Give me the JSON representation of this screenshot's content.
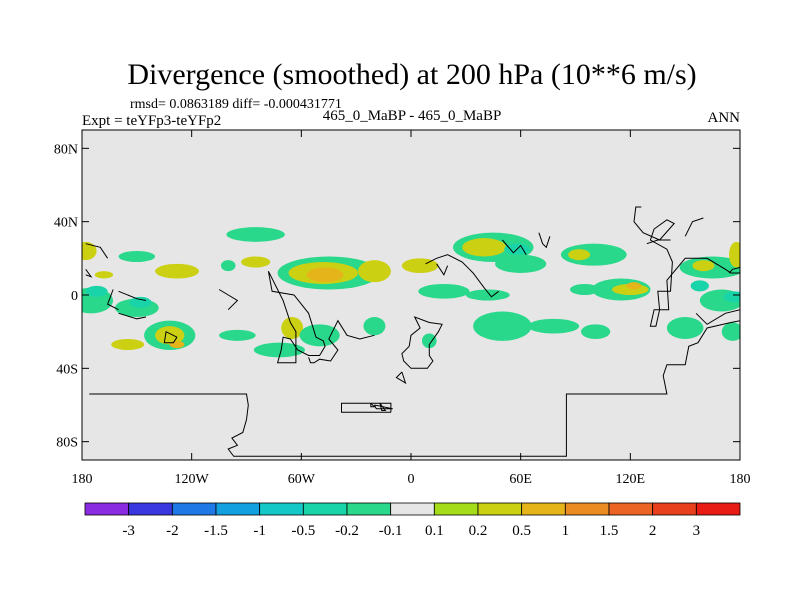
{
  "chart_data": {
    "type": "heatmap",
    "title": "Divergence (smoothed) at 200 hPa (10**6 m/s)",
    "stats_line": "rmsd= 0.0863189 diff= -0.000431771",
    "left_label": "Expt = teYFp3-teYFp2",
    "center_label": "465_0_MaBP - 465_0_MaBP",
    "right_label": "ANN",
    "x_range": [
      -180,
      180
    ],
    "y_range": [
      -90,
      90
    ],
    "x_ticks": [
      {
        "value": -180,
        "label": "180"
      },
      {
        "value": -120,
        "label": "120W"
      },
      {
        "value": -60,
        "label": "60W"
      },
      {
        "value": 0,
        "label": "0"
      },
      {
        "value": 60,
        "label": "60E"
      },
      {
        "value": 120,
        "label": "120E"
      },
      {
        "value": 180,
        "label": "180"
      }
    ],
    "y_ticks": [
      {
        "value": 80,
        "label": "80N"
      },
      {
        "value": 40,
        "label": "40N"
      },
      {
        "value": 0,
        "label": "0"
      },
      {
        "value": -40,
        "label": "40S"
      },
      {
        "value": -80,
        "label": "80S"
      }
    ],
    "background_color": "#e6e6e6",
    "colorbar": {
      "labels": [
        "-3",
        "-2",
        "-1.5",
        "-1",
        "-0.5",
        "-0.2",
        "-0.1",
        "0.1",
        "0.2",
        "0.5",
        "1",
        "1.5",
        "2",
        "3"
      ],
      "colors": [
        "#8a2be2",
        "#3a36e0",
        "#1e78e6",
        "#12a0e0",
        "#14c8c8",
        "#18d4a8",
        "#2ad88c",
        "#e6e6e6",
        "#a4dc1a",
        "#ccd012",
        "#e4b41a",
        "#eb8c22",
        "#eb6423",
        "#e8401c",
        "#e81c14"
      ]
    },
    "anomaly_regions": [
      {
        "lon": -178,
        "lat": 24,
        "rlon": 6,
        "rlat": 5,
        "level": "0.2"
      },
      {
        "lon": -150,
        "lat": 21,
        "rlon": 10,
        "rlat": 3,
        "level": "-0.1"
      },
      {
        "lon": -168,
        "lat": 11,
        "rlon": 5,
        "rlat": 2,
        "level": "0.2"
      },
      {
        "lon": -128,
        "lat": 13,
        "rlon": 12,
        "rlat": 4,
        "level": "0.2"
      },
      {
        "lon": -85,
        "lat": 33,
        "rlon": 16,
        "rlat": 4,
        "level": "-0.1"
      },
      {
        "lon": -85,
        "lat": 18,
        "rlon": 8,
        "rlat": 3,
        "level": "0.2"
      },
      {
        "lon": -45,
        "lat": 12,
        "rlon": 28,
        "rlat": 9,
        "level": "-0.1"
      },
      {
        "lon": -48,
        "lat": 12,
        "rlon": 19,
        "rlat": 6,
        "level": "0.2"
      },
      {
        "lon": -47,
        "lat": 11,
        "rlon": 10,
        "rlat": 4,
        "level": "0.5"
      },
      {
        "lon": -20,
        "lat": 13,
        "rlon": 9,
        "rlat": 6,
        "level": "0.2"
      },
      {
        "lon": 5,
        "lat": 16,
        "rlon": 10,
        "rlat": 4,
        "level": "0.2"
      },
      {
        "lon": 45,
        "lat": 26,
        "rlon": 22,
        "rlat": 8,
        "level": "-0.1"
      },
      {
        "lon": 40,
        "lat": 26,
        "rlon": 12,
        "rlat": 5,
        "level": "0.2"
      },
      {
        "lon": 58,
        "lat": 25,
        "rlon": 7,
        "rlat": 3,
        "level": "-0.2"
      },
      {
        "lon": 60,
        "lat": 17,
        "rlon": 14,
        "rlat": 5,
        "level": "-0.1"
      },
      {
        "lon": 100,
        "lat": 22,
        "rlon": 18,
        "rlat": 6,
        "level": "-0.1"
      },
      {
        "lon": 92,
        "lat": 22,
        "rlon": 6,
        "rlat": 3,
        "level": "0.2"
      },
      {
        "lon": 165,
        "lat": 15,
        "rlon": 18,
        "rlat": 6,
        "level": "-0.1"
      },
      {
        "lon": 160,
        "lat": 16,
        "rlon": 6,
        "rlat": 3,
        "level": "0.2"
      },
      {
        "lon": 178,
        "lat": 22,
        "rlon": 4,
        "rlat": 7,
        "level": "0.2"
      },
      {
        "lon": -175,
        "lat": -3,
        "rlon": 12,
        "rlat": 7,
        "level": "-0.1"
      },
      {
        "lon": -172,
        "lat": 2,
        "rlon": 6,
        "rlat": 3,
        "level": "-0.2"
      },
      {
        "lon": -150,
        "lat": -7,
        "rlon": 12,
        "rlat": 5,
        "level": "-0.1"
      },
      {
        "lon": -148,
        "lat": -4,
        "rlon": 6,
        "rlat": 3,
        "level": "-0.2"
      },
      {
        "lon": -132,
        "lat": -22,
        "rlon": 14,
        "rlat": 8,
        "level": "-0.1"
      },
      {
        "lon": -132,
        "lat": -22,
        "rlon": 8,
        "rlat": 5,
        "level": "0.2"
      },
      {
        "lon": -128,
        "lat": -27,
        "rlon": 4,
        "rlat": 2,
        "level": "0.5"
      },
      {
        "lon": -155,
        "lat": -27,
        "rlon": 9,
        "rlat": 3,
        "level": "0.2"
      },
      {
        "lon": -95,
        "lat": -22,
        "rlon": 10,
        "rlat": 3,
        "level": "-0.1"
      },
      {
        "lon": -72,
        "lat": -30,
        "rlon": 14,
        "rlat": 4,
        "level": "-0.1"
      },
      {
        "lon": -65,
        "lat": -18,
        "rlon": 6,
        "rlat": 6,
        "level": "0.2"
      },
      {
        "lon": -20,
        "lat": -17,
        "rlon": 6,
        "rlat": 5,
        "level": "-0.1"
      },
      {
        "lon": -50,
        "lat": -22,
        "rlon": 11,
        "rlat": 6,
        "level": "-0.1"
      },
      {
        "lon": 10,
        "lat": -25,
        "rlon": 4,
        "rlat": 4,
        "level": "-0.1"
      },
      {
        "lon": 18,
        "lat": 2,
        "rlon": 14,
        "rlat": 4,
        "level": "-0.1"
      },
      {
        "lon": 42,
        "lat": 0,
        "rlon": 12,
        "rlat": 3,
        "level": "-0.1"
      },
      {
        "lon": 50,
        "lat": -17,
        "rlon": 16,
        "rlat": 8,
        "level": "-0.1"
      },
      {
        "lon": 78,
        "lat": -17,
        "rlon": 14,
        "rlat": 4,
        "level": "-0.1"
      },
      {
        "lon": 101,
        "lat": -20,
        "rlon": 8,
        "rlat": 4,
        "level": "-0.1"
      },
      {
        "lon": 95,
        "lat": 3,
        "rlon": 8,
        "rlat": 3,
        "level": "-0.1"
      },
      {
        "lon": 115,
        "lat": 3,
        "rlon": 16,
        "rlat": 6,
        "level": "-0.1"
      },
      {
        "lon": 120,
        "lat": 3,
        "rlon": 10,
        "rlat": 3,
        "level": "0.2"
      },
      {
        "lon": 122,
        "lat": 5,
        "rlon": 4,
        "rlat": 2,
        "level": "0.5"
      },
      {
        "lon": 150,
        "lat": -18,
        "rlon": 10,
        "rlat": 6,
        "level": "-0.1"
      },
      {
        "lon": 170,
        "lat": -3,
        "rlon": 12,
        "rlat": 6,
        "level": "-0.1"
      },
      {
        "lon": 177,
        "lat": -1,
        "rlon": 6,
        "rlat": 3,
        "level": "-0.2"
      },
      {
        "lon": 176,
        "lat": -20,
        "rlon": 6,
        "rlat": 5,
        "level": "-0.1"
      },
      {
        "lon": -100,
        "lat": 16,
        "rlon": 4,
        "rlat": 3,
        "level": "-0.1"
      },
      {
        "lon": 158,
        "lat": 5,
        "rlon": 5,
        "rlat": 3,
        "level": "-0.2"
      }
    ],
    "coastlines": [
      [
        [
          -78,
          13
        ],
        [
          -76,
          2
        ],
        [
          -64,
          0
        ],
        [
          -56,
          -10
        ],
        [
          -52,
          -23
        ],
        [
          -48,
          -25
        ],
        [
          -47,
          -28
        ],
        [
          -50,
          -33
        ],
        [
          -56,
          -33
        ],
        [
          -62,
          -30
        ],
        [
          -66,
          -24
        ],
        [
          -70,
          -23
        ],
        [
          -71,
          -30
        ],
        [
          -73,
          -37
        ],
        [
          -63,
          -37
        ],
        [
          -63,
          -20
        ],
        [
          -66,
          -15
        ],
        [
          -70,
          -3
        ],
        [
          -78,
          13
        ]
      ],
      [
        [
          -176,
          -54
        ],
        [
          -159,
          -54
        ],
        [
          -146,
          -54
        ],
        [
          -130,
          -54
        ],
        [
          -110,
          -54
        ],
        [
          -100,
          -54
        ],
        [
          -90,
          -54
        ],
        [
          -89,
          -60
        ],
        [
          -90,
          -68
        ],
        [
          -92,
          -75
        ],
        [
          -98,
          -78
        ],
        [
          -95,
          -82
        ],
        [
          -100,
          -84
        ],
        [
          -97,
          -88
        ],
        [
          -60,
          -88
        ],
        [
          -20,
          -88
        ],
        [
          0,
          -88
        ],
        [
          40,
          -88
        ],
        [
          85,
          -88
        ],
        [
          85,
          -54
        ],
        [
          109,
          -54
        ],
        [
          140,
          -54
        ],
        [
          138,
          -44
        ],
        [
          140,
          -38
        ],
        [
          150,
          -38
        ],
        [
          152,
          -28
        ],
        [
          157,
          -26
        ],
        [
          162,
          -18
        ],
        [
          175,
          -15
        ],
        [
          180,
          -14
        ]
      ],
      [
        [
          180,
          -8
        ],
        [
          172,
          -10
        ],
        [
          162,
          -16
        ],
        [
          160,
          -14
        ],
        [
          156,
          -10
        ]
      ],
      [
        [
          180,
          12
        ],
        [
          175,
          12
        ],
        [
          172,
          14
        ],
        [
          162,
          20
        ],
        [
          150,
          20
        ],
        [
          140,
          8
        ],
        [
          141,
          -8
        ],
        [
          133,
          -8
        ],
        [
          131,
          -17
        ],
        [
          134,
          -17
        ],
        [
          136,
          -8
        ],
        [
          135,
          2
        ],
        [
          142,
          2
        ],
        [
          143,
          18
        ],
        [
          140,
          25
        ],
        [
          131,
          30
        ],
        [
          133,
          36
        ],
        [
          140,
          41
        ],
        [
          144,
          39
        ],
        [
          136,
          30
        ],
        [
          127,
          34
        ],
        [
          122,
          40
        ],
        [
          123,
          48
        ],
        [
          126,
          48
        ]
      ],
      [
        [
          180,
          15
        ],
        [
          176,
          14
        ],
        [
          174,
          12
        ]
      ],
      [
        [
          -178,
          11
        ],
        [
          -175,
          10
        ],
        [
          -178,
          14
        ]
      ],
      [
        [
          -178,
          28
        ],
        [
          -170,
          26
        ],
        [
          -166,
          20
        ]
      ],
      [
        [
          -160,
          2
        ],
        [
          -150,
          -2
        ],
        [
          -145,
          -3
        ]
      ],
      [
        [
          -160,
          -10
        ],
        [
          -150,
          -13
        ],
        [
          -145,
          -12
        ]
      ],
      [
        [
          -128,
          -23
        ],
        [
          -134,
          -20
        ],
        [
          -135,
          -26
        ],
        [
          -130,
          -26
        ],
        [
          -128,
          -23
        ]
      ],
      [
        [
          -20,
          -22
        ],
        [
          -28,
          -24
        ],
        [
          -35,
          -22
        ],
        [
          -40,
          -14
        ],
        [
          -45,
          -24
        ],
        [
          -40,
          -30
        ],
        [
          -44,
          -36
        ],
        [
          -50,
          -35
        ],
        [
          -53,
          -37
        ],
        [
          -55,
          -37
        ],
        [
          -56,
          -34
        ]
      ],
      [
        [
          -1,
          -28
        ],
        [
          -5,
          -32
        ],
        [
          -4,
          -36
        ],
        [
          0,
          -40
        ],
        [
          9,
          -40
        ],
        [
          12,
          -36
        ],
        [
          10,
          -33
        ],
        [
          10,
          -27
        ],
        [
          15,
          -20
        ],
        [
          17,
          -16
        ],
        [
          10,
          -15
        ],
        [
          2,
          -12
        ],
        [
          5,
          -18
        ],
        [
          0,
          -22
        ],
        [
          -1,
          -28
        ]
      ],
      [
        [
          -5,
          -42
        ],
        [
          -8,
          -45
        ],
        [
          -3,
          -48
        ],
        [
          -5,
          -42
        ]
      ],
      [
        [
          -20,
          -60
        ],
        [
          -10,
          -62
        ],
        [
          -19,
          -62
        ],
        [
          -20,
          -60
        ]
      ],
      [
        [
          -22,
          -59
        ],
        [
          -22,
          -61
        ],
        [
          -20,
          -61
        ],
        [
          -22,
          -59
        ]
      ],
      [
        [
          -17,
          -59
        ],
        [
          -16,
          -63
        ],
        [
          -14,
          -63
        ],
        [
          -17,
          -59
        ]
      ],
      [
        [
          -11,
          -64
        ],
        [
          -38,
          -64
        ],
        [
          -38,
          -59
        ],
        [
          -11,
          -59
        ],
        [
          -11,
          -64
        ]
      ],
      [
        [
          8,
          17
        ],
        [
          14,
          20
        ],
        [
          20,
          22
        ],
        [
          28,
          18
        ],
        [
          32,
          14
        ],
        [
          34,
          12
        ],
        [
          40,
          4
        ],
        [
          44,
          -1
        ],
        [
          48,
          2
        ]
      ],
      [
        [
          14,
          17
        ],
        [
          18,
          11
        ],
        [
          20,
          16
        ]
      ],
      [
        [
          50,
          30
        ],
        [
          56,
          23
        ],
        [
          60,
          27
        ],
        [
          63,
          22
        ]
      ],
      [
        [
          70,
          34
        ],
        [
          72,
          28
        ],
        [
          74,
          26
        ],
        [
          76,
          32
        ]
      ],
      [
        [
          129,
          28
        ],
        [
          135,
          30
        ],
        [
          142,
          30
        ]
      ],
      [
        [
          150,
          32
        ],
        [
          154,
          40
        ],
        [
          160,
          42
        ]
      ],
      [
        [
          -105,
          3
        ],
        [
          -95,
          -3
        ],
        [
          -100,
          -8
        ]
      ],
      [
        [
          -163,
          3
        ],
        [
          -166,
          -5
        ],
        [
          -160,
          -8
        ]
      ]
    ]
  }
}
